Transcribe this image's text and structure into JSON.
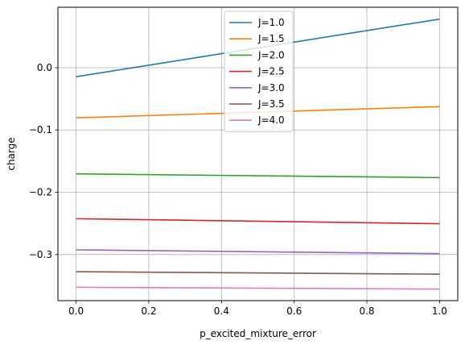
{
  "chart_data": {
    "type": "line",
    "title": "",
    "xlabel": "p_excited_mixture_error",
    "ylabel": "charge",
    "xlim": [
      -0.05,
      1.05
    ],
    "ylim": [
      -0.374,
      0.097
    ],
    "xticks": [
      0.0,
      0.2,
      0.4,
      0.6,
      0.8,
      1.0
    ],
    "xtick_labels": [
      "0.0",
      "0.2",
      "0.4",
      "0.6",
      "0.8",
      "1.0"
    ],
    "yticks": [
      0.0,
      -0.1,
      -0.2,
      -0.3
    ],
    "ytick_labels": [
      "0.0",
      "−0.1",
      "−0.2",
      "−0.3"
    ],
    "grid": true,
    "legend_position": "top-center",
    "x": [
      0.0,
      1.0
    ],
    "series": [
      {
        "name": "J=1.0",
        "color": "#1f77b4",
        "values": [
          -0.0145,
          0.078
        ]
      },
      {
        "name": "J=1.5",
        "color": "#ff7f0e",
        "values": [
          -0.0805,
          -0.0625
        ]
      },
      {
        "name": "J=2.0",
        "color": "#2ca02c",
        "values": [
          -0.1705,
          -0.1765
        ]
      },
      {
        "name": "J=2.5",
        "color": "#d62728",
        "values": [
          -0.2425,
          -0.2505
        ]
      },
      {
        "name": "J=3.0",
        "color": "#9467bd",
        "values": [
          -0.2925,
          -0.2985
        ]
      },
      {
        "name": "J=3.5",
        "color": "#8c564b",
        "values": [
          -0.3275,
          -0.3315
        ]
      },
      {
        "name": "J=4.0",
        "color": "#e377c2",
        "values": [
          -0.3525,
          -0.3555
        ]
      }
    ]
  }
}
